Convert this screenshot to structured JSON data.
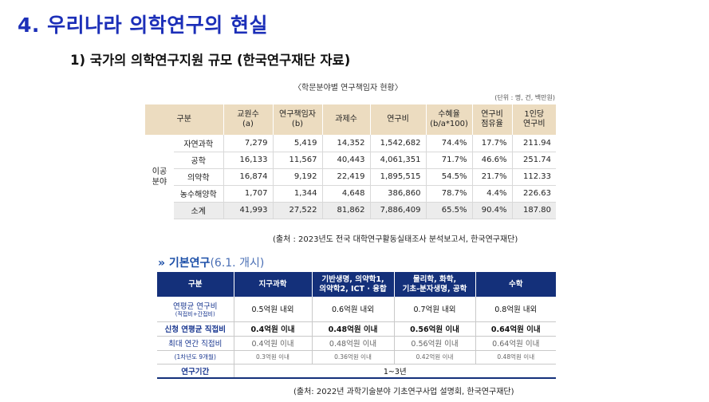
{
  "main_title": "4. 우리나라 의학연구의 현실",
  "sub_title": "1) 국가의 의학연구지원 규모 (한국연구재단 자료)",
  "table1": {
    "caption": "〈학문분야별 연구책임자 현황〉",
    "unit": "(단위 : 명, 건, 백만원)",
    "headers": {
      "category": "구분",
      "h1a": "교원수",
      "h1b": "(a)",
      "h2a": "연구책임자",
      "h2b": "(b)",
      "h3": "과제수",
      "h4": "연구비",
      "h5a": "수혜율",
      "h5b": "(b/a*100)",
      "h6a": "연구비",
      "h6b": "점유율",
      "h7a": "1인당",
      "h7b": "연구비"
    },
    "group_line1": "이공",
    "group_line2": "분야",
    "rows": [
      {
        "name": "자연과학",
        "v": [
          "7,279",
          "5,419",
          "14,352",
          "1,542,682",
          "74.4%",
          "17.7%",
          "211.94"
        ]
      },
      {
        "name": "공학",
        "v": [
          "16,133",
          "11,567",
          "40,443",
          "4,061,351",
          "71.7%",
          "46.6%",
          "251.74"
        ]
      },
      {
        "name": "의약학",
        "v": [
          "16,874",
          "9,192",
          "22,419",
          "1,895,515",
          "54.5%",
          "21.7%",
          "112.33"
        ]
      },
      {
        "name": "농수해양학",
        "v": [
          "1,707",
          "1,344",
          "4,648",
          "386,860",
          "78.7%",
          "4.4%",
          "226.63"
        ]
      },
      {
        "name": "소계",
        "v": [
          "41,993",
          "27,522",
          "81,862",
          "7,886,409",
          "65.5%",
          "90.4%",
          "187.80"
        ]
      }
    ],
    "source": "(출처 : 2023년도 전국 대학연구활동실태조사 분석보고서, 한국연구재단)"
  },
  "basic": {
    "arrow": "»",
    "title": "기본연구",
    "date": "(6.1. 개시)"
  },
  "table2": {
    "headers": {
      "category": "구분",
      "c1": "지구과학",
      "c2a": "기반생명, 의약학1,",
      "c2b": "의약학2, ICT · 융합",
      "c3a": "물리학, 화학,",
      "c3b": "기초-분자생명, 공학",
      "c4": "수학"
    },
    "row1": {
      "label": "연평균 연구비",
      "label_small": "(직접비+간접비)",
      "v": [
        "0.5억원 내외",
        "0.6억원 내외",
        "0.7억원 내외",
        "0.8억원 내외"
      ]
    },
    "row2": {
      "label": "신청 연평균 직접비",
      "v": [
        "0.4억원 이내",
        "0.48억원 이내",
        "0.56억원 이내",
        "0.64억원 이내"
      ]
    },
    "row3": {
      "label": "최대 연간 직접비",
      "v": [
        "0.4억원 이내",
        "0.48억원 이내",
        "0.56억원 이내",
        "0.64억원 이내"
      ]
    },
    "row4": {
      "label": "(1차년도 9개월)",
      "v": [
        "0.3억원 이내",
        "0.36억원 이내",
        "0.42억원 이내",
        "0.48억원 이내"
      ]
    },
    "row5": {
      "label": "연구기간",
      "value": "1~3년"
    },
    "source": "(출처: 2022년 과학기술분야 기초연구사업 설명회, 한국연구재단)"
  }
}
